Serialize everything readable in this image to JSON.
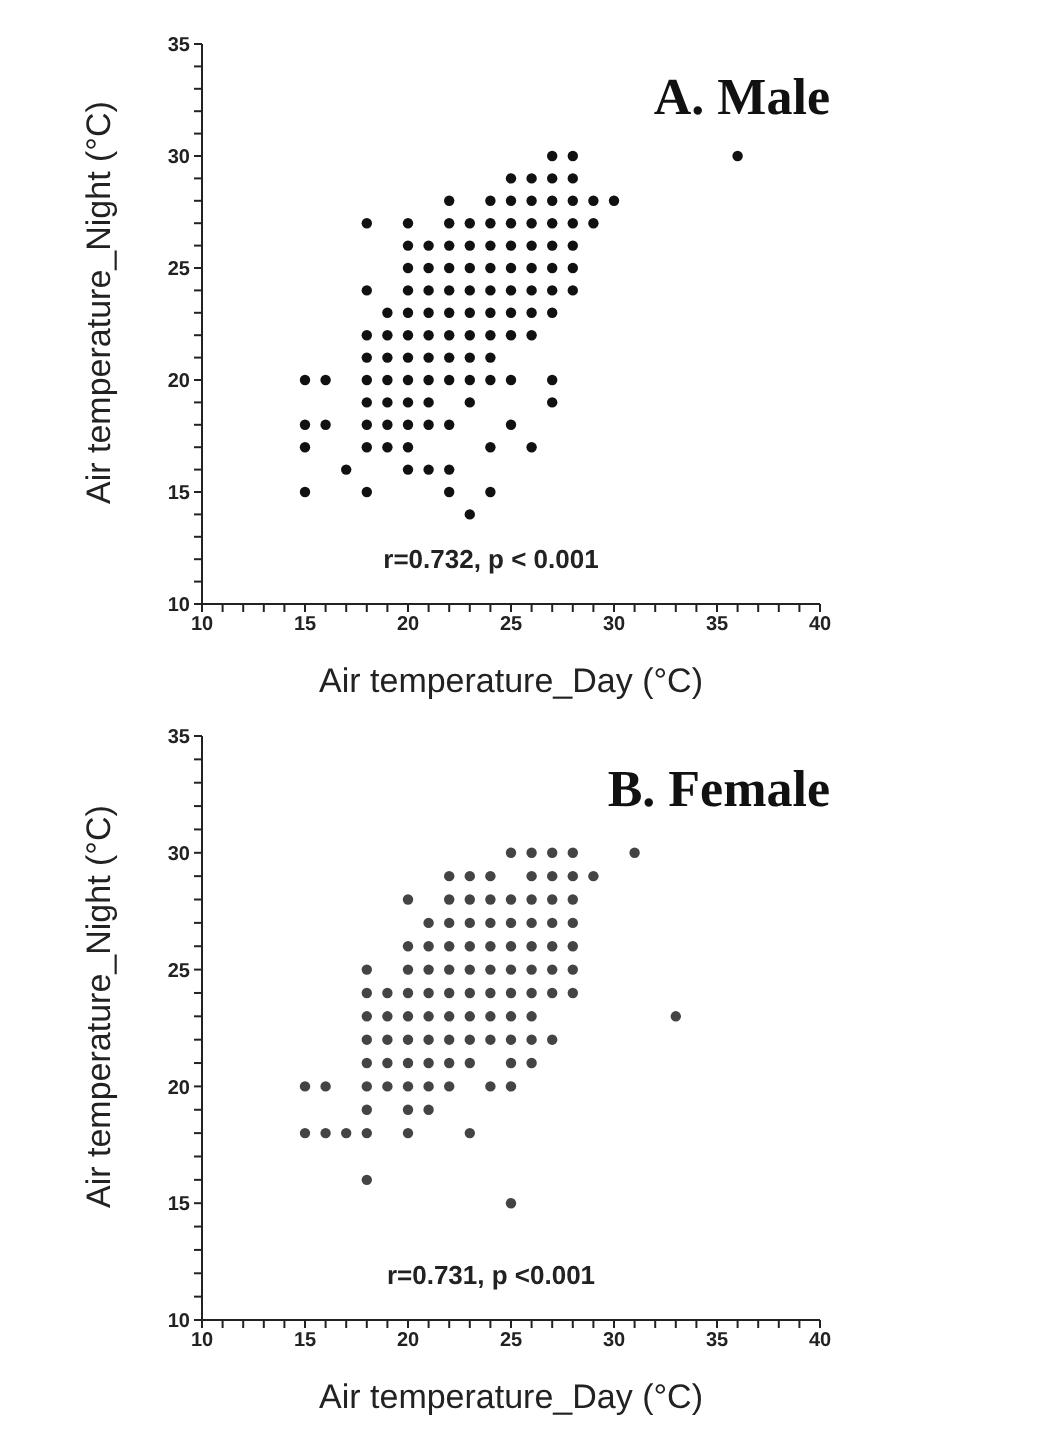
{
  "chart_data": [
    {
      "type": "scatter",
      "title": "A. Male",
      "xlabel": "Air temperature_Day (°C)",
      "ylabel": "Air temperature_Night (°C)",
      "annotations": [
        "r=0.732, p < 0.001"
      ],
      "marker": "circle",
      "grid": false,
      "legend": false,
      "xlim": [
        10,
        40
      ],
      "ylim": [
        10,
        35
      ],
      "xticks": [
        10,
        {
          "value": 11,
          "label": null
        },
        {
          "value": 12,
          "label": null
        },
        {
          "value": 13,
          "label": null
        },
        {
          "value": 14,
          "label": null
        },
        15,
        {
          "value": 16,
          "label": null
        },
        {
          "value": 17,
          "label": null
        },
        {
          "value": 18,
          "label": null
        },
        {
          "value": 19,
          "label": null
        },
        20,
        {
          "value": 21,
          "label": null
        },
        {
          "value": 22,
          "label": null
        },
        {
          "value": 23,
          "label": null
        },
        {
          "value": 24,
          "label": null
        },
        25,
        {
          "value": 26,
          "label": null
        },
        {
          "value": 27,
          "label": null
        },
        {
          "value": 28,
          "label": null
        },
        {
          "value": 29,
          "label": null
        },
        30,
        {
          "value": 31,
          "label": null
        },
        {
          "value": 32,
          "label": null
        },
        {
          "value": 33,
          "label": null
        },
        {
          "value": 34,
          "label": null
        },
        35,
        {
          "value": 36,
          "label": null
        },
        {
          "value": 37,
          "label": null
        },
        {
          "value": 38,
          "label": null
        },
        {
          "value": 39,
          "label": null
        },
        40
      ],
      "yticks": [
        10,
        {
          "value": 11,
          "label": null
        },
        {
          "value": 12,
          "label": null
        },
        {
          "value": 13,
          "label": null
        },
        {
          "value": 14,
          "label": null
        },
        15,
        {
          "value": 16,
          "label": null
        },
        {
          "value": 17,
          "label": null
        },
        {
          "value": 18,
          "label": null
        },
        {
          "value": 19,
          "label": null
        },
        20,
        {
          "value": 21,
          "label": null
        },
        {
          "value": 22,
          "label": null
        },
        {
          "value": 23,
          "label": null
        },
        {
          "value": 24,
          "label": null
        },
        25,
        {
          "value": 26,
          "label": null
        },
        {
          "value": 27,
          "label": null
        },
        {
          "value": 28,
          "label": null
        },
        {
          "value": 29,
          "label": null
        },
        30,
        {
          "value": 31,
          "label": null
        },
        {
          "value": 32,
          "label": null
        },
        {
          "value": 33,
          "label": null
        },
        {
          "value": 34,
          "label": null
        },
        35
      ],
      "series": [
        {
          "color": "#111111",
          "x": [
            27,
            28,
            36,
            25,
            26,
            27,
            28,
            22,
            24,
            25,
            26,
            27,
            28,
            29,
            30,
            18,
            20,
            22,
            23,
            24,
            25,
            26,
            27,
            28,
            29,
            20,
            21,
            22,
            23,
            24,
            25,
            26,
            27,
            28,
            20,
            21,
            22,
            23,
            24,
            25,
            26,
            27,
            28,
            18,
            20,
            21,
            22,
            23,
            24,
            25,
            26,
            27,
            28,
            19,
            20,
            21,
            22,
            23,
            24,
            25,
            26,
            27,
            18,
            19,
            20,
            21,
            22,
            23,
            24,
            25,
            26,
            18,
            19,
            20,
            21,
            22,
            23,
            24,
            15,
            16,
            18,
            19,
            20,
            21,
            22,
            23,
            24,
            25,
            27,
            18,
            19,
            20,
            21,
            23,
            27,
            15,
            16,
            18,
            19,
            20,
            21,
            22,
            25,
            15,
            18,
            19,
            20,
            24,
            26,
            17,
            20,
            21,
            22,
            15,
            18,
            22,
            24,
            23
          ],
          "values": [
            30,
            30,
            30,
            29,
            29,
            29,
            29,
            28,
            28,
            28,
            28,
            28,
            28,
            28,
            28,
            27,
            27,
            27,
            27,
            27,
            27,
            27,
            27,
            27,
            27,
            26,
            26,
            26,
            26,
            26,
            26,
            26,
            26,
            26,
            25,
            25,
            25,
            25,
            25,
            25,
            25,
            25,
            25,
            24,
            24,
            24,
            24,
            24,
            24,
            24,
            24,
            24,
            24,
            23,
            23,
            23,
            23,
            23,
            23,
            23,
            23,
            23,
            22,
            22,
            22,
            22,
            22,
            22,
            22,
            22,
            22,
            21,
            21,
            21,
            21,
            21,
            21,
            21,
            20,
            20,
            20,
            20,
            20,
            20,
            20,
            20,
            20,
            20,
            20,
            19,
            19,
            19,
            19,
            19,
            19,
            18,
            18,
            18,
            18,
            18,
            18,
            18,
            18,
            17,
            17,
            17,
            17,
            17,
            17,
            16,
            16,
            16,
            16,
            15,
            15,
            15,
            15,
            14
          ]
        }
      ]
    },
    {
      "type": "scatter",
      "title": "B. Female",
      "xlabel": "Air temperature_Day (°C)",
      "ylabel": "Air temperature_Night (°C)",
      "annotations": [
        "r=0.731, p <0.001"
      ],
      "marker": "circle",
      "grid": false,
      "legend": false,
      "xlim": [
        10,
        40
      ],
      "ylim": [
        10,
        35
      ],
      "xticks": [
        10,
        {
          "value": 11,
          "label": null
        },
        {
          "value": 12,
          "label": null
        },
        {
          "value": 13,
          "label": null
        },
        {
          "value": 14,
          "label": null
        },
        15,
        {
          "value": 16,
          "label": null
        },
        {
          "value": 17,
          "label": null
        },
        {
          "value": 18,
          "label": null
        },
        {
          "value": 19,
          "label": null
        },
        20,
        {
          "value": 21,
          "label": null
        },
        {
          "value": 22,
          "label": null
        },
        {
          "value": 23,
          "label": null
        },
        {
          "value": 24,
          "label": null
        },
        25,
        {
          "value": 26,
          "label": null
        },
        {
          "value": 27,
          "label": null
        },
        {
          "value": 28,
          "label": null
        },
        {
          "value": 29,
          "label": null
        },
        30,
        {
          "value": 31,
          "label": null
        },
        {
          "value": 32,
          "label": null
        },
        {
          "value": 33,
          "label": null
        },
        {
          "value": 34,
          "label": null
        },
        35,
        {
          "value": 36,
          "label": null
        },
        {
          "value": 37,
          "label": null
        },
        {
          "value": 38,
          "label": null
        },
        {
          "value": 39,
          "label": null
        },
        40
      ],
      "yticks": [
        10,
        {
          "value": 11,
          "label": null
        },
        {
          "value": 12,
          "label": null
        },
        {
          "value": 13,
          "label": null
        },
        {
          "value": 14,
          "label": null
        },
        15,
        {
          "value": 16,
          "label": null
        },
        {
          "value": 17,
          "label": null
        },
        {
          "value": 18,
          "label": null
        },
        {
          "value": 19,
          "label": null
        },
        20,
        {
          "value": 21,
          "label": null
        },
        {
          "value": 22,
          "label": null
        },
        {
          "value": 23,
          "label": null
        },
        {
          "value": 24,
          "label": null
        },
        25,
        {
          "value": 26,
          "label": null
        },
        {
          "value": 27,
          "label": null
        },
        {
          "value": 28,
          "label": null
        },
        {
          "value": 29,
          "label": null
        },
        30,
        {
          "value": 31,
          "label": null
        },
        {
          "value": 32,
          "label": null
        },
        {
          "value": 33,
          "label": null
        },
        {
          "value": 34,
          "label": null
        },
        35
      ],
      "series": [
        {
          "color": "#444444",
          "x": [
            25,
            26,
            27,
            28,
            31,
            22,
            23,
            24,
            26,
            27,
            28,
            29,
            20,
            22,
            23,
            24,
            25,
            26,
            27,
            28,
            21,
            22,
            23,
            24,
            25,
            26,
            27,
            28,
            20,
            21,
            22,
            23,
            24,
            25,
            26,
            27,
            28,
            18,
            20,
            21,
            22,
            23,
            24,
            25,
            26,
            27,
            28,
            18,
            19,
            20,
            21,
            22,
            23,
            24,
            25,
            26,
            27,
            28,
            18,
            19,
            20,
            21,
            22,
            23,
            24,
            25,
            26,
            33,
            18,
            19,
            20,
            21,
            22,
            23,
            24,
            25,
            26,
            27,
            18,
            19,
            20,
            21,
            22,
            23,
            25,
            26,
            15,
            16,
            18,
            19,
            20,
            21,
            22,
            24,
            25,
            18,
            20,
            21,
            15,
            16,
            17,
            18,
            20,
            23,
            18,
            25
          ],
          "values": [
            30,
            30,
            30,
            30,
            30,
            29,
            29,
            29,
            29,
            29,
            29,
            29,
            28,
            28,
            28,
            28,
            28,
            28,
            28,
            28,
            27,
            27,
            27,
            27,
            27,
            27,
            27,
            27,
            26,
            26,
            26,
            26,
            26,
            26,
            26,
            26,
            26,
            25,
            25,
            25,
            25,
            25,
            25,
            25,
            25,
            25,
            25,
            24,
            24,
            24,
            24,
            24,
            24,
            24,
            24,
            24,
            24,
            24,
            23,
            23,
            23,
            23,
            23,
            23,
            23,
            23,
            23,
            23,
            22,
            22,
            22,
            22,
            22,
            22,
            22,
            22,
            22,
            22,
            21,
            21,
            21,
            21,
            21,
            21,
            21,
            21,
            20,
            20,
            20,
            20,
            20,
            20,
            20,
            20,
            20,
            19,
            19,
            19,
            18,
            18,
            18,
            18,
            18,
            18,
            16,
            15
          ]
        }
      ]
    }
  ]
}
